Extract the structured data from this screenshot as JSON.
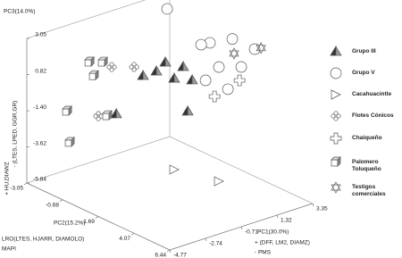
{
  "chart_data": {
    "type": "scatter3d",
    "xlabel": "PC1(30.0%)",
    "ylabel": "PC2(15.2%)",
    "zlabel": "PC3(14.0%)",
    "xlim": [
      -4.77,
      3.35
    ],
    "xticks": [
      -4.77,
      -2.74,
      -0.71,
      1.32,
      3.35
    ],
    "ylim": [
      -3.05,
      6.44
    ],
    "yticks": [
      -3.05,
      -0.68,
      1.69,
      4.07,
      6.44
    ],
    "zlim": [
      -5.84,
      3.05
    ],
    "zticks": [
      -5.84,
      -3.62,
      {
        "value": -1.4,
        "label": "-1.40"
      },
      0.82,
      3.05
    ],
    "annotations": [
      "+ HU,DIAWZ",
      "- (LTES, LPED, GGR,GR)",
      "LRO(LTES, HJARR, DIAMOLO)",
      "MAPI",
      "+ (DFF, LM2, DIAMZ)",
      "- PMS"
    ],
    "series": [
      {
        "name": "Grupo III",
        "marker": "pyramid",
        "color": "#555555",
        "x": [
          -2.23,
          -0.96,
          0.05,
          0.56,
          -3.75,
          0.31,
          -1.47,
          -0.46
        ],
        "y": [
          1.7,
          1.7,
          1.7,
          1.7,
          1.7,
          1.7,
          1.7,
          1.7
        ],
        "z": [
          1.91,
          2.29,
          1.66,
          0.66,
          0.09,
          -1.17,
          1.92,
          1.12
        ]
      },
      {
        "name": "Grupo V",
        "marker": "circle",
        "color": "#555555",
        "x": [
          -0.86,
          1.57,
          2.84,
          4.11,
          2.08,
          3.35,
          1.32,
          2.59,
          1.07
        ],
        "y": [
          1.7,
          1.7,
          1.7,
          1.7,
          1.7,
          1.7,
          1.7,
          1.7,
          1.7
        ],
        "z": [
          5.55,
          2.61,
          2.4,
          1.33,
          0.94,
          0.5,
          0.39,
          -0.6,
          2.67
        ]
      },
      {
        "name": "Cacahuacintle",
        "marker": "triangle",
        "color": "#555555",
        "x": [
          2.08,
          -0.46
        ],
        "y": [
          1.7,
          1.7
        ],
        "z": [
          -6.08,
          -4.47
        ]
      },
      {
        "name": "Flotes Cónicos",
        "marker": "flower",
        "color": "#555555",
        "x": [
          -4.01,
          -2.74,
          -4.77
        ],
        "y": [
          1.7,
          1.7,
          1.7
        ],
        "z": [
          3.08,
          2.64,
          0.33
        ]
      },
      {
        "name": "Chalqueño",
        "marker": "cross",
        "color": "#555555",
        "x": [
          1.83,
          3.25
        ],
        "y": [
          1.7,
          1.7
        ],
        "z": [
          -0.78,
          -0.29
        ]
      },
      {
        "name": "Palomero Toluqueño",
        "marker": "cube",
        "color": "#555555",
        "x": [
          -3.65,
          -2.89,
          -3.4,
          -4.92,
          -2.64,
          -4.77
        ],
        "y": [
          -0.2,
          -0.2,
          -0.2,
          -0.2,
          -0.2,
          -0.2
        ],
        "z": [
          2.41,
          2.14,
          1.49,
          -0.16,
          -1.24,
          -2.13
        ]
      },
      {
        "name": "Testigos comerciales",
        "marker": "star",
        "color": "#555555",
        "x": [
          2.94,
          4.47
        ],
        "y": [
          1.7,
          1.7
        ],
        "z": [
          1.47,
          1.27
        ]
      }
    ]
  }
}
